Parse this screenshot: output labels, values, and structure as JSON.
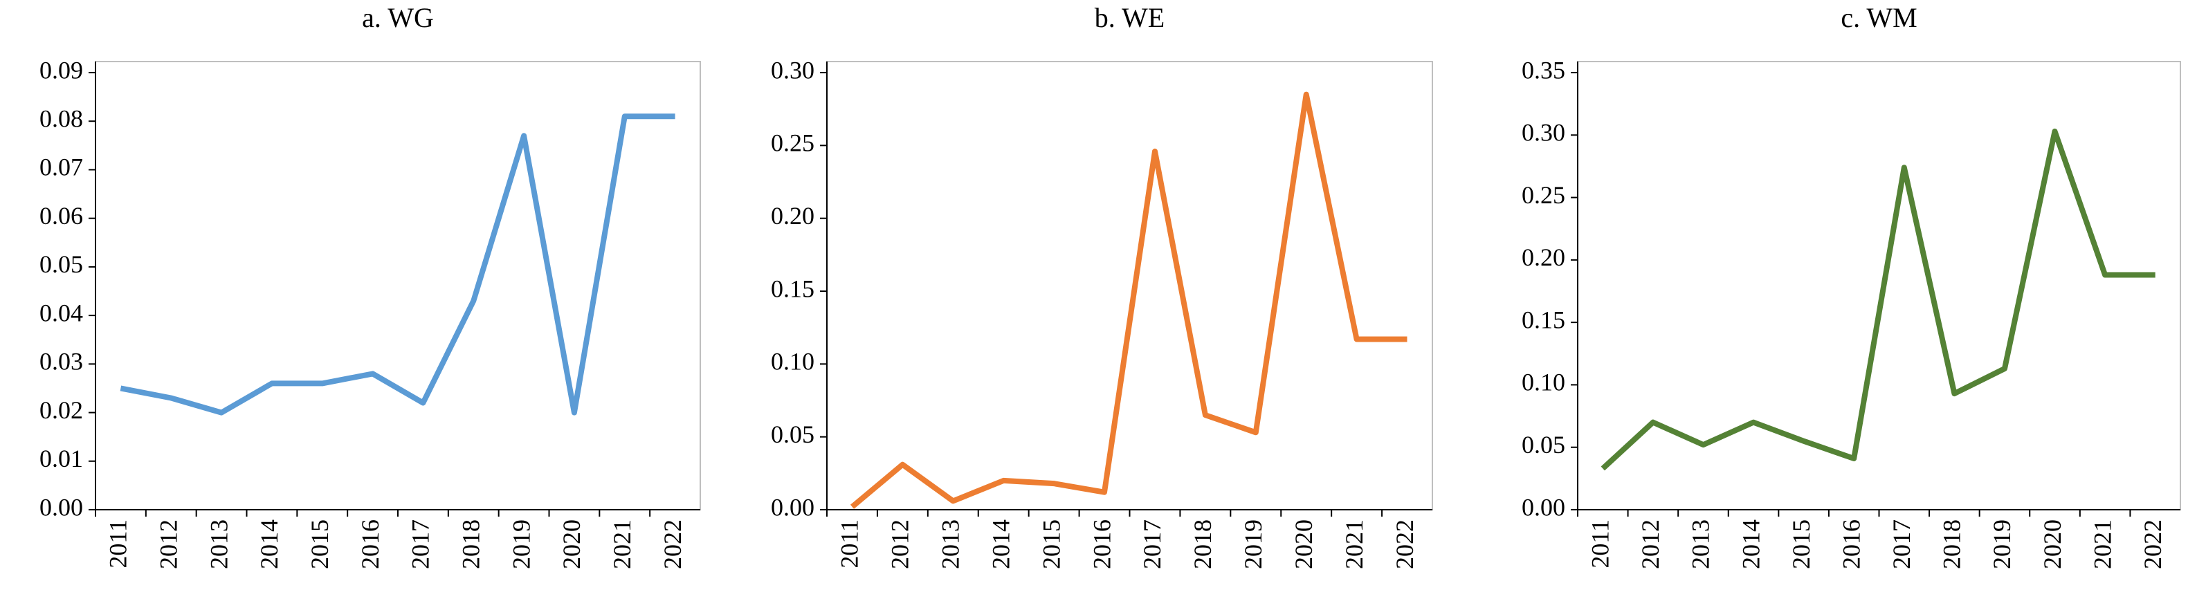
{
  "chart_data": [
    {
      "type": "line",
      "title": "a. WG",
      "color": "#5b9bd5",
      "categories": [
        "2011",
        "2012",
        "2013",
        "2014",
        "2015",
        "2016",
        "2017",
        "2018",
        "2019",
        "2020",
        "2021",
        "2022"
      ],
      "values": [
        0.025,
        0.023,
        0.02,
        0.026,
        0.026,
        0.028,
        0.022,
        0.043,
        0.077,
        0.02,
        0.081,
        0.081
      ],
      "ylim": [
        0,
        0.09
      ],
      "yticks": [
        {
          "value": 0,
          "label": "0.00"
        },
        {
          "value": 0.01,
          "label": "0.01"
        },
        {
          "value": 0.02,
          "label": "0.02"
        },
        {
          "value": 0.03,
          "label": "0.03"
        },
        {
          "value": 0.04,
          "label": "0.04"
        },
        {
          "value": 0.05,
          "label": "0.05"
        },
        {
          "value": 0.06,
          "label": "0.06"
        },
        {
          "value": 0.07,
          "label": "0.07"
        },
        {
          "value": 0.08,
          "label": "0.08"
        },
        {
          "value": 0.09,
          "label": "0.09"
        }
      ]
    },
    {
      "type": "line",
      "title": "b. WE",
      "color": "#ed7d31",
      "categories": [
        "2011",
        "2012",
        "2013",
        "2014",
        "2015",
        "2016",
        "2017",
        "2018",
        "2019",
        "2020",
        "2021",
        "2022"
      ],
      "values": [
        0.002,
        0.031,
        0.006,
        0.02,
        0.018,
        0.012,
        0.246,
        0.065,
        0.053,
        0.285,
        0.117,
        0.117
      ],
      "ylim": [
        0,
        0.3
      ],
      "yticks": [
        {
          "value": 0,
          "label": "0.00"
        },
        {
          "value": 0.05,
          "label": "0.05"
        },
        {
          "value": 0.1,
          "label": "0.10"
        },
        {
          "value": 0.15,
          "label": "0.15"
        },
        {
          "value": 0.2,
          "label": "0.20"
        },
        {
          "value": 0.25,
          "label": "0.25"
        },
        {
          "value": 0.3,
          "label": "0.30"
        }
      ]
    },
    {
      "type": "line",
      "title": "c. WM",
      "color": "#548235",
      "categories": [
        "2011",
        "2012",
        "2013",
        "2014",
        "2015",
        "2016",
        "2017",
        "2018",
        "2019",
        "2020",
        "2021",
        "2022"
      ],
      "values": [
        0.033,
        0.07,
        0.052,
        0.07,
        0.055,
        0.041,
        0.274,
        0.093,
        0.113,
        0.303,
        0.188,
        0.188
      ],
      "ylim": [
        0,
        0.35
      ],
      "yticks": [
        {
          "value": 0,
          "label": "0.00"
        },
        {
          "value": 0.05,
          "label": "0.05"
        },
        {
          "value": 0.1,
          "label": "0.10"
        },
        {
          "value": 0.15,
          "label": "0.15"
        },
        {
          "value": 0.2,
          "label": "0.20"
        },
        {
          "value": 0.25,
          "label": "0.25"
        },
        {
          "value": 0.3,
          "label": "0.30"
        },
        {
          "value": 0.35,
          "label": "0.35"
        }
      ]
    }
  ]
}
